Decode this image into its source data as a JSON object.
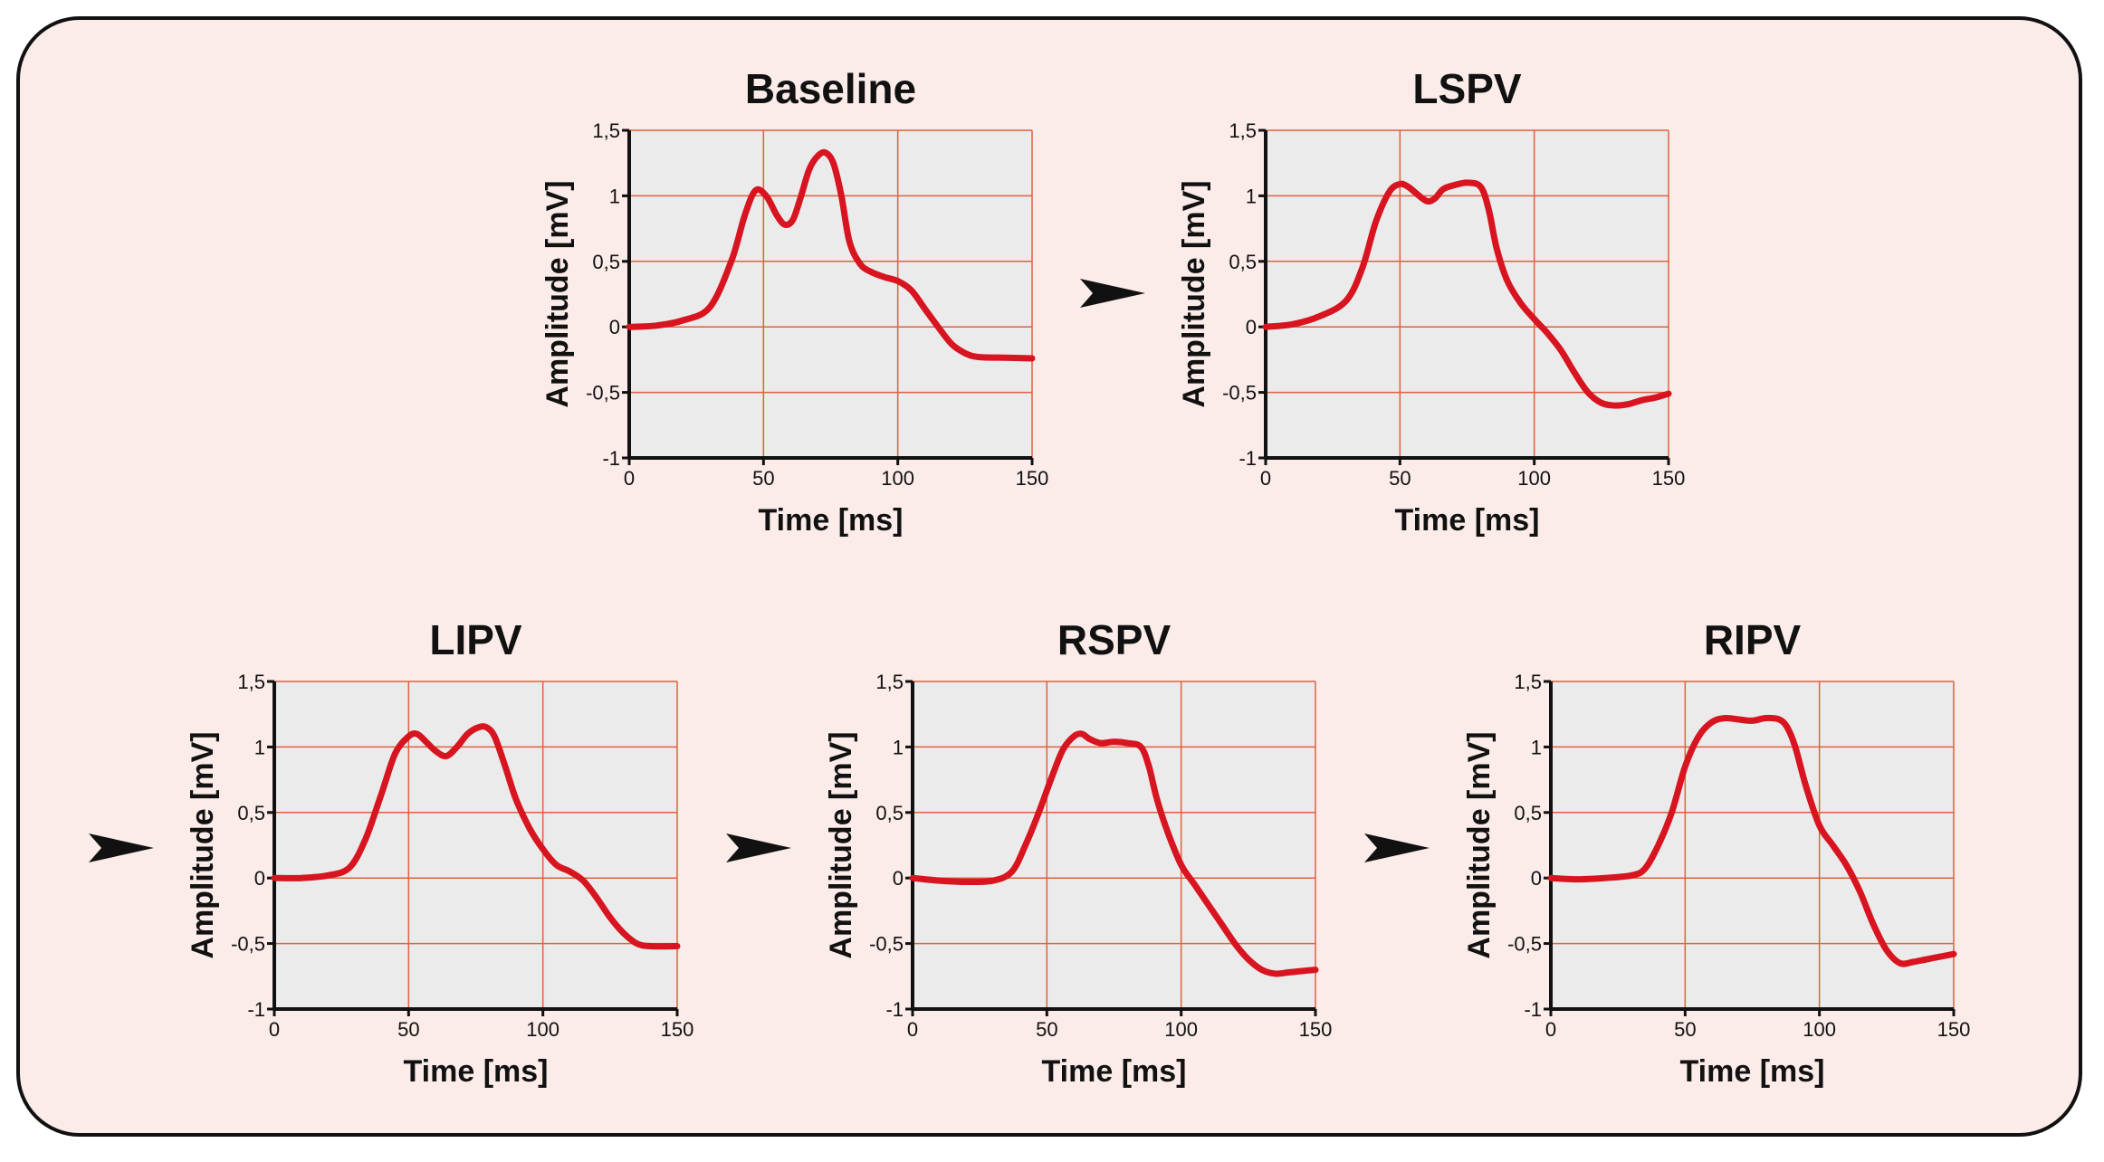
{
  "colors": {
    "background": "#fbece9",
    "plot_bg": "#ebebeb",
    "grid": "#e0603f",
    "trace": "#d7141f",
    "axis": "#111111",
    "arrow": "#111111"
  },
  "chart_data": [
    {
      "type": "line",
      "title": "Baseline",
      "xlabel": "Time [ms]",
      "ylabel": "Amplitude [mV]",
      "xlim": [
        0,
        150
      ],
      "ylim": [
        -1,
        1.5
      ],
      "xticks": [
        "0",
        "50",
        "100",
        "150"
      ],
      "yticks": [
        "-1",
        "-0,5",
        "0",
        "0,5",
        "1",
        "1,5"
      ],
      "grid": true,
      "series": [
        {
          "x": [
            0,
            10,
            20,
            30,
            38,
            43,
            47,
            51,
            55,
            58,
            61,
            64,
            67,
            70,
            73,
            76,
            79,
            82,
            86,
            90,
            95,
            100,
            105,
            110,
            115,
            120,
            125,
            130,
            140,
            150
          ],
          "y": [
            0,
            0.01,
            0.05,
            0.15,
            0.5,
            0.85,
            1.04,
            1.0,
            0.85,
            0.78,
            0.82,
            1.0,
            1.2,
            1.3,
            1.33,
            1.25,
            1.0,
            0.65,
            0.48,
            0.42,
            0.38,
            0.35,
            0.28,
            0.14,
            0.0,
            -0.13,
            -0.2,
            -0.23,
            -0.235,
            -0.24
          ]
        }
      ]
    },
    {
      "type": "line",
      "title": "LSPV",
      "xlabel": "Time [ms]",
      "ylabel": "Amplitude [mV]",
      "xlim": [
        0,
        150
      ],
      "ylim": [
        -1,
        1.5
      ],
      "xticks": [
        "0",
        "50",
        "100",
        "150"
      ],
      "yticks": [
        "-1",
        "-0,5",
        "0",
        "0,5",
        "1",
        "1,5"
      ],
      "grid": true,
      "series": [
        {
          "x": [
            0,
            10,
            20,
            30,
            36,
            41,
            46,
            50,
            53,
            56,
            60,
            63,
            66,
            70,
            75,
            80,
            83,
            86,
            90,
            95,
            100,
            105,
            110,
            115,
            120,
            125,
            130,
            135,
            140,
            145,
            150
          ],
          "y": [
            0,
            0.02,
            0.08,
            0.2,
            0.45,
            0.8,
            1.03,
            1.09,
            1.07,
            1.02,
            0.96,
            0.98,
            1.05,
            1.08,
            1.1,
            1.07,
            0.9,
            0.6,
            0.35,
            0.18,
            0.06,
            -0.05,
            -0.18,
            -0.35,
            -0.5,
            -0.58,
            -0.6,
            -0.59,
            -0.56,
            -0.54,
            -0.51
          ]
        }
      ]
    },
    {
      "type": "line",
      "title": "LIPV",
      "xlabel": "Time [ms]",
      "ylabel": "Amplitude [mV]",
      "xlim": [
        0,
        150
      ],
      "ylim": [
        -1,
        1.5
      ],
      "xticks": [
        "0",
        "50",
        "100",
        "150"
      ],
      "yticks": [
        "-1",
        "-0,5",
        "0",
        "0,5",
        "1",
        "1,5"
      ],
      "grid": true,
      "series": [
        {
          "x": [
            0,
            10,
            20,
            28,
            34,
            40,
            45,
            50,
            53,
            56,
            60,
            64,
            68,
            72,
            76,
            79,
            82,
            86,
            90,
            95,
            100,
            105,
            110,
            115,
            120,
            125,
            130,
            135,
            140,
            150
          ],
          "y": [
            0,
            0.0,
            0.02,
            0.08,
            0.3,
            0.65,
            0.95,
            1.08,
            1.1,
            1.05,
            0.97,
            0.93,
            1.0,
            1.1,
            1.15,
            1.15,
            1.08,
            0.85,
            0.6,
            0.38,
            0.22,
            0.1,
            0.05,
            -0.02,
            -0.15,
            -0.3,
            -0.42,
            -0.5,
            -0.52,
            -0.52
          ]
        }
      ]
    },
    {
      "type": "line",
      "title": "RSPV",
      "xlabel": "Time [ms]",
      "ylabel": "Amplitude [mV]",
      "xlim": [
        0,
        150
      ],
      "ylim": [
        -1,
        1.5
      ],
      "xticks": [
        "0",
        "50",
        "100",
        "150"
      ],
      "yticks": [
        "-1",
        "-0,5",
        "0",
        "0,5",
        "1",
        "1,5"
      ],
      "grid": true,
      "series": [
        {
          "x": [
            0,
            10,
            20,
            30,
            37,
            42,
            47,
            52,
            56,
            60,
            63,
            66,
            70,
            75,
            80,
            85,
            88,
            91,
            95,
            100,
            105,
            110,
            115,
            120,
            125,
            130,
            135,
            140,
            145,
            150
          ],
          "y": [
            0,
            -0.02,
            -0.03,
            -0.02,
            0.05,
            0.25,
            0.5,
            0.78,
            0.98,
            1.08,
            1.1,
            1.06,
            1.03,
            1.04,
            1.03,
            1.0,
            0.85,
            0.6,
            0.35,
            0.1,
            -0.05,
            -0.2,
            -0.35,
            -0.5,
            -0.62,
            -0.7,
            -0.73,
            -0.72,
            -0.71,
            -0.7
          ]
        }
      ]
    },
    {
      "type": "line",
      "title": "RIPV",
      "xlabel": "Time [ms]",
      "ylabel": "Amplitude [mV]",
      "xlim": [
        0,
        150
      ],
      "ylim": [
        -1,
        1.5
      ],
      "xticks": [
        "0",
        "50",
        "100",
        "150"
      ],
      "yticks": [
        "-1",
        "-0,5",
        "0",
        "0,5",
        "1",
        "1,5"
      ],
      "grid": true,
      "series": [
        {
          "x": [
            0,
            10,
            20,
            30,
            35,
            40,
            45,
            50,
            55,
            60,
            65,
            70,
            75,
            80,
            85,
            88,
            91,
            95,
            100,
            105,
            110,
            115,
            120,
            125,
            130,
            135,
            140,
            145,
            150
          ],
          "y": [
            0,
            -0.01,
            0.0,
            0.02,
            0.07,
            0.25,
            0.5,
            0.85,
            1.08,
            1.19,
            1.22,
            1.21,
            1.2,
            1.22,
            1.21,
            1.15,
            1.0,
            0.7,
            0.4,
            0.25,
            0.1,
            -0.1,
            -0.35,
            -0.55,
            -0.65,
            -0.64,
            -0.62,
            -0.6,
            -0.58
          ]
        }
      ]
    }
  ]
}
